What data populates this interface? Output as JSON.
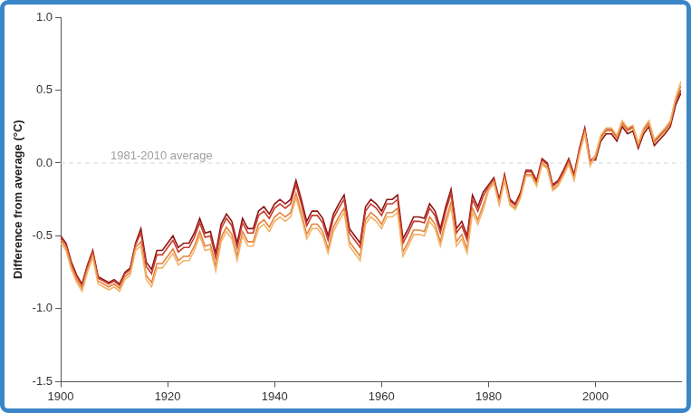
{
  "chart_data": {
    "type": "line",
    "y_label": "Difference from average (°C)",
    "annotations": [
      {
        "text": "1981-2010 average",
        "y": 0
      }
    ],
    "x": [
      1900,
      1901,
      1902,
      1903,
      1904,
      1905,
      1906,
      1907,
      1908,
      1909,
      1910,
      1911,
      1912,
      1913,
      1914,
      1915,
      1916,
      1917,
      1918,
      1919,
      1920,
      1921,
      1922,
      1923,
      1924,
      1925,
      1926,
      1927,
      1928,
      1929,
      1930,
      1931,
      1932,
      1933,
      1934,
      1935,
      1936,
      1937,
      1938,
      1939,
      1940,
      1941,
      1942,
      1943,
      1944,
      1945,
      1946,
      1947,
      1948,
      1949,
      1950,
      1951,
      1952,
      1953,
      1954,
      1955,
      1956,
      1957,
      1958,
      1959,
      1960,
      1961,
      1962,
      1963,
      1964,
      1965,
      1966,
      1967,
      1968,
      1969,
      1970,
      1971,
      1972,
      1973,
      1974,
      1975,
      1976,
      1977,
      1978,
      1979,
      1980,
      1981,
      1982,
      1983,
      1984,
      1985,
      1986,
      1987,
      1988,
      1989,
      1990,
      1991,
      1992,
      1993,
      1994,
      1995,
      1996,
      1997,
      1998,
      1999,
      2000,
      2001,
      2002,
      2003,
      2004,
      2005,
      2006,
      2007,
      2008,
      2009,
      2010,
      2011,
      2012,
      2013,
      2014,
      2015,
      2016
    ],
    "series": [
      {
        "color": "#f2b46a",
        "values": [
          -0.55,
          -0.6,
          -0.73,
          -0.82,
          -0.88,
          -0.75,
          -0.65,
          -0.83,
          -0.85,
          -0.87,
          -0.85,
          -0.88,
          -0.8,
          -0.77,
          -0.6,
          -0.57,
          -0.8,
          -0.85,
          -0.72,
          -0.72,
          -0.67,
          -0.62,
          -0.7,
          -0.67,
          -0.67,
          -0.6,
          -0.5,
          -0.6,
          -0.59,
          -0.74,
          -0.54,
          -0.47,
          -0.52,
          -0.67,
          -0.5,
          -0.57,
          -0.57,
          -0.45,
          -0.42,
          -0.47,
          -0.4,
          -0.37,
          -0.4,
          -0.37,
          -0.24,
          -0.37,
          -0.52,
          -0.45,
          -0.45,
          -0.5,
          -0.62,
          -0.47,
          -0.4,
          -0.34,
          -0.57,
          -0.62,
          -0.67,
          -0.42,
          -0.37,
          -0.4,
          -0.45,
          -0.37,
          -0.37,
          -0.34,
          -0.64,
          -0.57,
          -0.49,
          -0.49,
          -0.5,
          -0.4,
          -0.45,
          -0.57,
          -0.42,
          -0.3,
          -0.57,
          -0.52,
          -0.62,
          -0.34,
          -0.42,
          -0.32,
          -0.19,
          -0.14,
          -0.29,
          -0.12,
          -0.29,
          -0.32,
          -0.24,
          -0.09,
          -0.09,
          -0.16,
          -0.01,
          -0.04,
          -0.19,
          -0.16,
          -0.09,
          -0.01,
          -0.12,
          0.06,
          0.2,
          -0.02,
          0.06,
          0.19,
          0.24,
          0.24,
          0.19,
          0.29,
          0.24,
          0.26,
          0.14,
          0.24,
          0.29,
          0.16,
          0.2,
          0.24,
          0.29,
          0.45,
          0.56
        ]
      },
      {
        "color": "#e5833c",
        "values": [
          -0.53,
          -0.58,
          -0.71,
          -0.8,
          -0.86,
          -0.73,
          -0.63,
          -0.81,
          -0.83,
          -0.85,
          -0.83,
          -0.86,
          -0.78,
          -0.75,
          -0.58,
          -0.54,
          -0.77,
          -0.82,
          -0.69,
          -0.69,
          -0.64,
          -0.59,
          -0.67,
          -0.64,
          -0.64,
          -0.57,
          -0.47,
          -0.57,
          -0.56,
          -0.71,
          -0.51,
          -0.44,
          -0.49,
          -0.64,
          -0.47,
          -0.54,
          -0.54,
          -0.42,
          -0.39,
          -0.44,
          -0.37,
          -0.34,
          -0.37,
          -0.34,
          -0.21,
          -0.34,
          -0.49,
          -0.42,
          -0.42,
          -0.47,
          -0.59,
          -0.44,
          -0.37,
          -0.31,
          -0.54,
          -0.59,
          -0.64,
          -0.39,
          -0.34,
          -0.37,
          -0.42,
          -0.34,
          -0.34,
          -0.31,
          -0.61,
          -0.54,
          -0.46,
          -0.46,
          -0.47,
          -0.37,
          -0.42,
          -0.54,
          -0.39,
          -0.27,
          -0.54,
          -0.49,
          -0.59,
          -0.31,
          -0.39,
          -0.29,
          -0.18,
          -0.13,
          -0.28,
          -0.11,
          -0.28,
          -0.31,
          -0.23,
          -0.08,
          -0.08,
          -0.15,
          0.0,
          -0.03,
          -0.18,
          -0.15,
          -0.08,
          0.0,
          -0.11,
          0.07,
          0.21,
          -0.01,
          0.04,
          0.17,
          0.22,
          0.22,
          0.17,
          0.27,
          0.22,
          0.24,
          0.12,
          0.22,
          0.27,
          0.14,
          0.18,
          0.22,
          0.27,
          0.44,
          0.53
        ]
      },
      {
        "color": "#c73a2c",
        "values": [
          -0.51,
          -0.56,
          -0.69,
          -0.78,
          -0.84,
          -0.71,
          -0.61,
          -0.79,
          -0.81,
          -0.83,
          -0.81,
          -0.84,
          -0.76,
          -0.73,
          -0.56,
          -0.48,
          -0.71,
          -0.76,
          -0.63,
          -0.63,
          -0.58,
          -0.53,
          -0.61,
          -0.58,
          -0.58,
          -0.51,
          -0.41,
          -0.51,
          -0.5,
          -0.65,
          -0.45,
          -0.38,
          -0.43,
          -0.58,
          -0.41,
          -0.48,
          -0.48,
          -0.36,
          -0.33,
          -0.38,
          -0.31,
          -0.28,
          -0.31,
          -0.28,
          -0.15,
          -0.28,
          -0.43,
          -0.36,
          -0.36,
          -0.41,
          -0.53,
          -0.38,
          -0.31,
          -0.25,
          -0.48,
          -0.53,
          -0.58,
          -0.33,
          -0.28,
          -0.31,
          -0.36,
          -0.28,
          -0.28,
          -0.25,
          -0.55,
          -0.48,
          -0.4,
          -0.4,
          -0.41,
          -0.31,
          -0.36,
          -0.48,
          -0.33,
          -0.21,
          -0.48,
          -0.43,
          -0.53,
          -0.25,
          -0.33,
          -0.23,
          -0.16,
          -0.11,
          -0.26,
          -0.09,
          -0.26,
          -0.29,
          -0.21,
          -0.06,
          -0.06,
          -0.13,
          0.02,
          -0.01,
          -0.16,
          -0.13,
          -0.06,
          0.02,
          -0.09,
          0.09,
          0.23,
          0.01,
          0.05,
          0.18,
          0.23,
          0.23,
          0.18,
          0.28,
          0.23,
          0.25,
          0.13,
          0.23,
          0.28,
          0.15,
          0.19,
          0.23,
          0.28,
          0.43,
          0.5
        ]
      },
      {
        "color": "#8e1414",
        "values": [
          -0.5,
          -0.55,
          -0.68,
          -0.77,
          -0.83,
          -0.7,
          -0.6,
          -0.78,
          -0.8,
          -0.82,
          -0.8,
          -0.83,
          -0.75,
          -0.72,
          -0.55,
          -0.45,
          -0.68,
          -0.73,
          -0.6,
          -0.6,
          -0.55,
          -0.5,
          -0.58,
          -0.55,
          -0.55,
          -0.48,
          -0.38,
          -0.48,
          -0.47,
          -0.62,
          -0.42,
          -0.35,
          -0.4,
          -0.55,
          -0.38,
          -0.45,
          -0.45,
          -0.33,
          -0.3,
          -0.35,
          -0.28,
          -0.25,
          -0.28,
          -0.25,
          -0.12,
          -0.25,
          -0.4,
          -0.33,
          -0.33,
          -0.38,
          -0.5,
          -0.35,
          -0.28,
          -0.22,
          -0.45,
          -0.5,
          -0.55,
          -0.3,
          -0.25,
          -0.28,
          -0.33,
          -0.25,
          -0.25,
          -0.22,
          -0.52,
          -0.45,
          -0.37,
          -0.37,
          -0.38,
          -0.28,
          -0.33,
          -0.45,
          -0.3,
          -0.18,
          -0.45,
          -0.4,
          -0.5,
          -0.22,
          -0.3,
          -0.2,
          -0.15,
          -0.1,
          -0.25,
          -0.08,
          -0.25,
          -0.28,
          -0.2,
          -0.05,
          -0.05,
          -0.12,
          0.03,
          0.0,
          -0.15,
          -0.12,
          -0.05,
          0.03,
          -0.08,
          0.1,
          0.24,
          0.02,
          0.02,
          0.15,
          0.2,
          0.2,
          0.15,
          0.25,
          0.2,
          0.22,
          0.1,
          0.2,
          0.25,
          0.12,
          0.16,
          0.2,
          0.25,
          0.4,
          0.48
        ]
      }
    ],
    "xlim": [
      1900,
      2016
    ],
    "xticks": [
      1900,
      1920,
      1940,
      1960,
      1980,
      2000
    ],
    "ylim": [
      -1.5,
      1.0
    ],
    "yticks": [
      -1.5,
      {
        "value": -1.0,
        "label": "-1.0"
      },
      -0.5,
      {
        "value": 0.0,
        "label": "0.0"
      },
      0.5,
      {
        "value": 1.0,
        "label": "1.0"
      }
    ],
    "grid": false
  }
}
